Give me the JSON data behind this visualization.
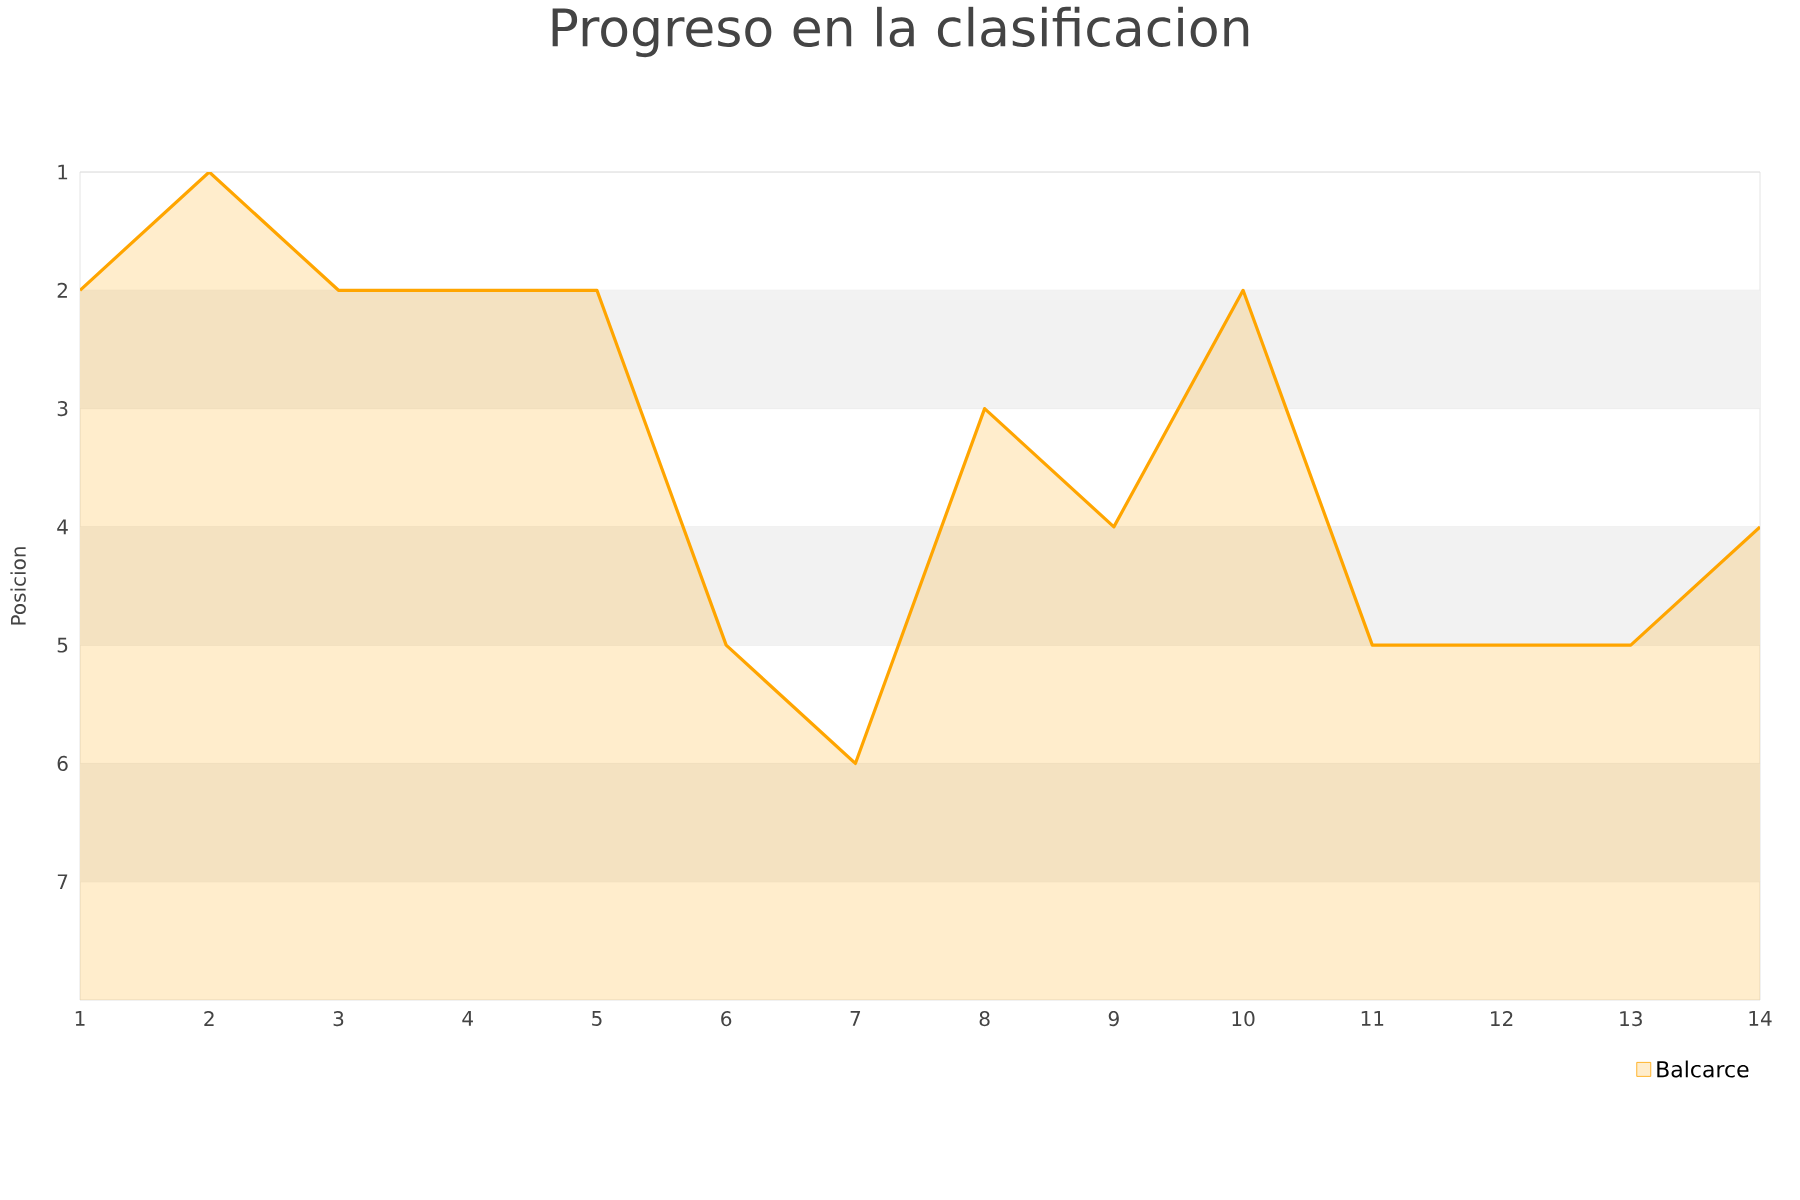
{
  "chart_data": {
    "type": "area",
    "title": "Progreso en la clasificacion",
    "ylabel": "Posicion",
    "x": [
      1,
      2,
      3,
      4,
      5,
      6,
      7,
      8,
      9,
      10,
      11,
      12,
      13,
      14
    ],
    "series": [
      {
        "name": "Balcarce",
        "color": "#ffa500",
        "values": [
          2,
          1,
          2,
          2,
          2,
          5,
          6,
          3,
          4,
          2,
          5,
          5,
          5,
          4
        ]
      }
    ],
    "xlim": [
      1,
      14
    ],
    "xticks": [
      1,
      2,
      3,
      4,
      5,
      6,
      7,
      8,
      9,
      10,
      11,
      12,
      13,
      14
    ],
    "ylim": [
      8,
      1
    ],
    "yticks": [
      1,
      2,
      3,
      4,
      5,
      6,
      7
    ],
    "bands": [
      {
        "axis": "y",
        "from": 2,
        "to": 3,
        "color": "#f2f2f2"
      },
      {
        "axis": "y",
        "from": 4,
        "to": 5,
        "color": "#f2f2f2"
      },
      {
        "axis": "y",
        "from": 6,
        "to": 7,
        "color": "#f2f2f2"
      }
    ],
    "grid": "y",
    "legend": "bottom right",
    "marker": "none",
    "line_style": "solid"
  }
}
